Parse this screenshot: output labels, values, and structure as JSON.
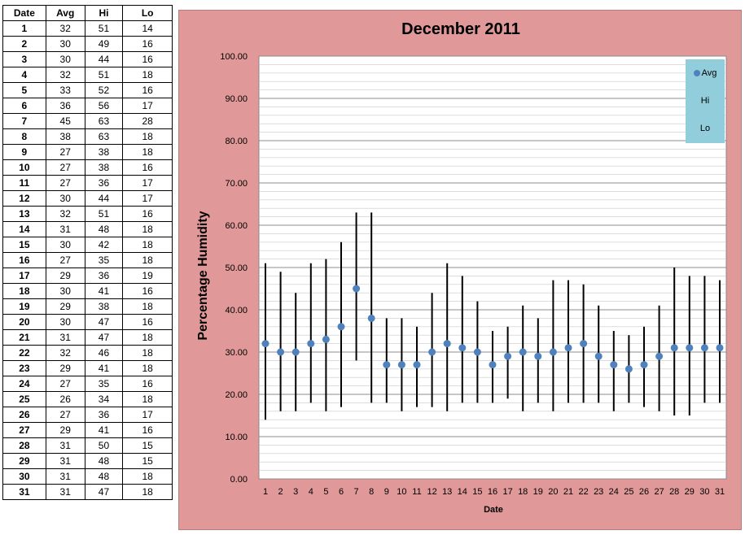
{
  "table": {
    "headers": [
      "Date",
      "Avg",
      "Hi",
      "Lo"
    ],
    "rows": [
      [
        "1",
        "32",
        "51",
        "14"
      ],
      [
        "2",
        "30",
        "49",
        "16"
      ],
      [
        "3",
        "30",
        "44",
        "16"
      ],
      [
        "4",
        "32",
        "51",
        "18"
      ],
      [
        "5",
        "33",
        "52",
        "16"
      ],
      [
        "6",
        "36",
        "56",
        "17"
      ],
      [
        "7",
        "45",
        "63",
        "28"
      ],
      [
        "8",
        "38",
        "63",
        "18"
      ],
      [
        "9",
        "27",
        "38",
        "18"
      ],
      [
        "10",
        "27",
        "38",
        "16"
      ],
      [
        "11",
        "27",
        "36",
        "17"
      ],
      [
        "12",
        "30",
        "44",
        "17"
      ],
      [
        "13",
        "32",
        "51",
        "16"
      ],
      [
        "14",
        "31",
        "48",
        "18"
      ],
      [
        "15",
        "30",
        "42",
        "18"
      ],
      [
        "16",
        "27",
        "35",
        "18"
      ],
      [
        "17",
        "29",
        "36",
        "19"
      ],
      [
        "18",
        "30",
        "41",
        "16"
      ],
      [
        "19",
        "29",
        "38",
        "18"
      ],
      [
        "20",
        "30",
        "47",
        "16"
      ],
      [
        "21",
        "31",
        "47",
        "18"
      ],
      [
        "22",
        "32",
        "46",
        "18"
      ],
      [
        "23",
        "29",
        "41",
        "18"
      ],
      [
        "24",
        "27",
        "35",
        "16"
      ],
      [
        "25",
        "26",
        "34",
        "18"
      ],
      [
        "26",
        "27",
        "36",
        "17"
      ],
      [
        "27",
        "29",
        "41",
        "16"
      ],
      [
        "28",
        "31",
        "50",
        "15"
      ],
      [
        "29",
        "31",
        "48",
        "15"
      ],
      [
        "30",
        "31",
        "48",
        "18"
      ],
      [
        "31",
        "31",
        "47",
        "18"
      ]
    ]
  },
  "chart_data": {
    "type": "scatter",
    "title": "December 2011",
    "xlabel": "Date",
    "ylabel": "Percentage Humidity",
    "ylim": [
      0,
      100
    ],
    "y_ticks": [
      "0.00",
      "10.00",
      "20.00",
      "30.00",
      "40.00",
      "50.00",
      "60.00",
      "70.00",
      "80.00",
      "90.00",
      "100.00"
    ],
    "x": [
      1,
      2,
      3,
      4,
      5,
      6,
      7,
      8,
      9,
      10,
      11,
      12,
      13,
      14,
      15,
      16,
      17,
      18,
      19,
      20,
      21,
      22,
      23,
      24,
      25,
      26,
      27,
      28,
      29,
      30,
      31
    ],
    "series": [
      {
        "name": "Avg",
        "values": [
          32,
          30,
          30,
          32,
          33,
          36,
          45,
          38,
          27,
          27,
          27,
          30,
          32,
          31,
          30,
          27,
          29,
          30,
          29,
          30,
          31,
          32,
          29,
          27,
          26,
          27,
          29,
          31,
          31,
          31,
          31
        ]
      },
      {
        "name": "Hi",
        "values": [
          51,
          49,
          44,
          51,
          52,
          56,
          63,
          63,
          38,
          38,
          36,
          44,
          51,
          48,
          42,
          35,
          36,
          41,
          38,
          47,
          47,
          46,
          41,
          35,
          34,
          36,
          41,
          50,
          48,
          48,
          47
        ]
      },
      {
        "name": "Lo",
        "values": [
          14,
          16,
          16,
          18,
          16,
          17,
          28,
          18,
          18,
          16,
          17,
          17,
          16,
          18,
          18,
          18,
          19,
          16,
          18,
          16,
          18,
          18,
          18,
          16,
          18,
          17,
          16,
          15,
          15,
          18,
          18
        ]
      }
    ],
    "legend": [
      "Avg",
      "Hi",
      "Lo"
    ],
    "legend_position": "top-right",
    "grid": true,
    "colors": {
      "avg_marker": "#4f81bd",
      "range_line": "#000000",
      "plot_bg": "#ffffff",
      "chart_bg": "#e09898",
      "legend_bg": "#92cddc"
    }
  }
}
